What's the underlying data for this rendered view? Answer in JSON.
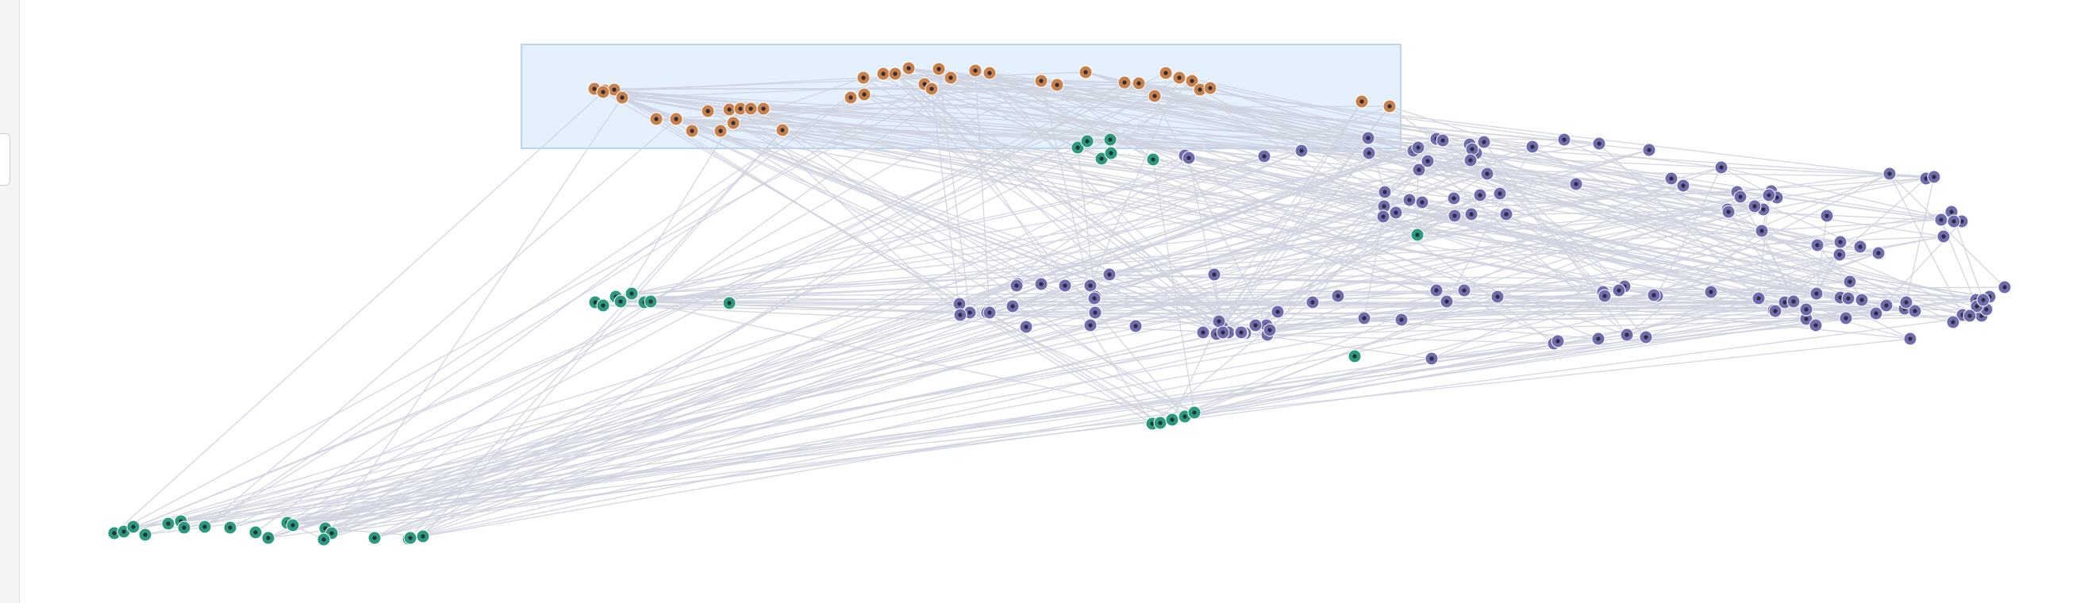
{
  "colors": {
    "background": "#ffffff",
    "edge": "#cfd2df",
    "selection_fill": "#e4f1fd",
    "selection_stroke": "#a9c8e8",
    "group_a": "#c8804a",
    "group_b": "#2b9a7c",
    "group_c": "#6f6cae",
    "node_dot": "#2c2c3c"
  }
}
